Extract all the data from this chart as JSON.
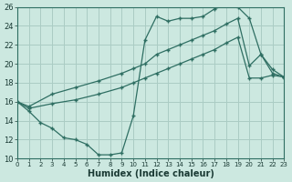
{
  "xlabel": "Humidex (Indice chaleur)",
  "bg_color": "#cce8e0",
  "grid_color": "#aaccc4",
  "line_color": "#2e6e62",
  "xmin": 0,
  "xmax": 23,
  "ymin": 10,
  "ymax": 26,
  "line1_x": [
    0,
    1,
    2,
    3,
    4,
    5,
    6,
    7,
    8,
    9,
    10,
    11,
    12,
    13,
    14,
    15,
    16,
    17,
    18,
    19,
    20,
    21,
    22,
    23
  ],
  "line1_y": [
    16,
    15,
    13.8,
    13.2,
    12.2,
    12.0,
    11.5,
    10.4,
    10.4,
    10.6,
    14.5,
    22.5,
    25.0,
    24.5,
    24.8,
    24.8,
    25.0,
    25.8,
    26.2,
    26.0,
    24.8,
    21.0,
    19.4,
    18.6
  ],
  "line2_x": [
    0,
    1,
    3,
    5,
    7,
    9,
    10,
    11,
    12,
    13,
    14,
    15,
    16,
    17,
    18,
    19,
    20,
    21,
    22,
    23
  ],
  "line2_y": [
    16,
    15.5,
    16.8,
    17.5,
    18.2,
    19.0,
    19.5,
    20.0,
    21.0,
    21.5,
    22.0,
    22.5,
    23.0,
    23.5,
    24.2,
    24.8,
    19.8,
    21.0,
    19.0,
    18.6
  ],
  "line3_x": [
    0,
    1,
    3,
    5,
    7,
    9,
    10,
    11,
    12,
    13,
    14,
    15,
    16,
    17,
    18,
    19,
    20,
    21,
    22,
    23
  ],
  "line3_y": [
    16,
    15.3,
    15.8,
    16.2,
    16.8,
    17.5,
    18.0,
    18.5,
    19.0,
    19.5,
    20.0,
    20.5,
    21.0,
    21.5,
    22.2,
    22.8,
    18.5,
    18.5,
    18.8,
    18.6
  ]
}
